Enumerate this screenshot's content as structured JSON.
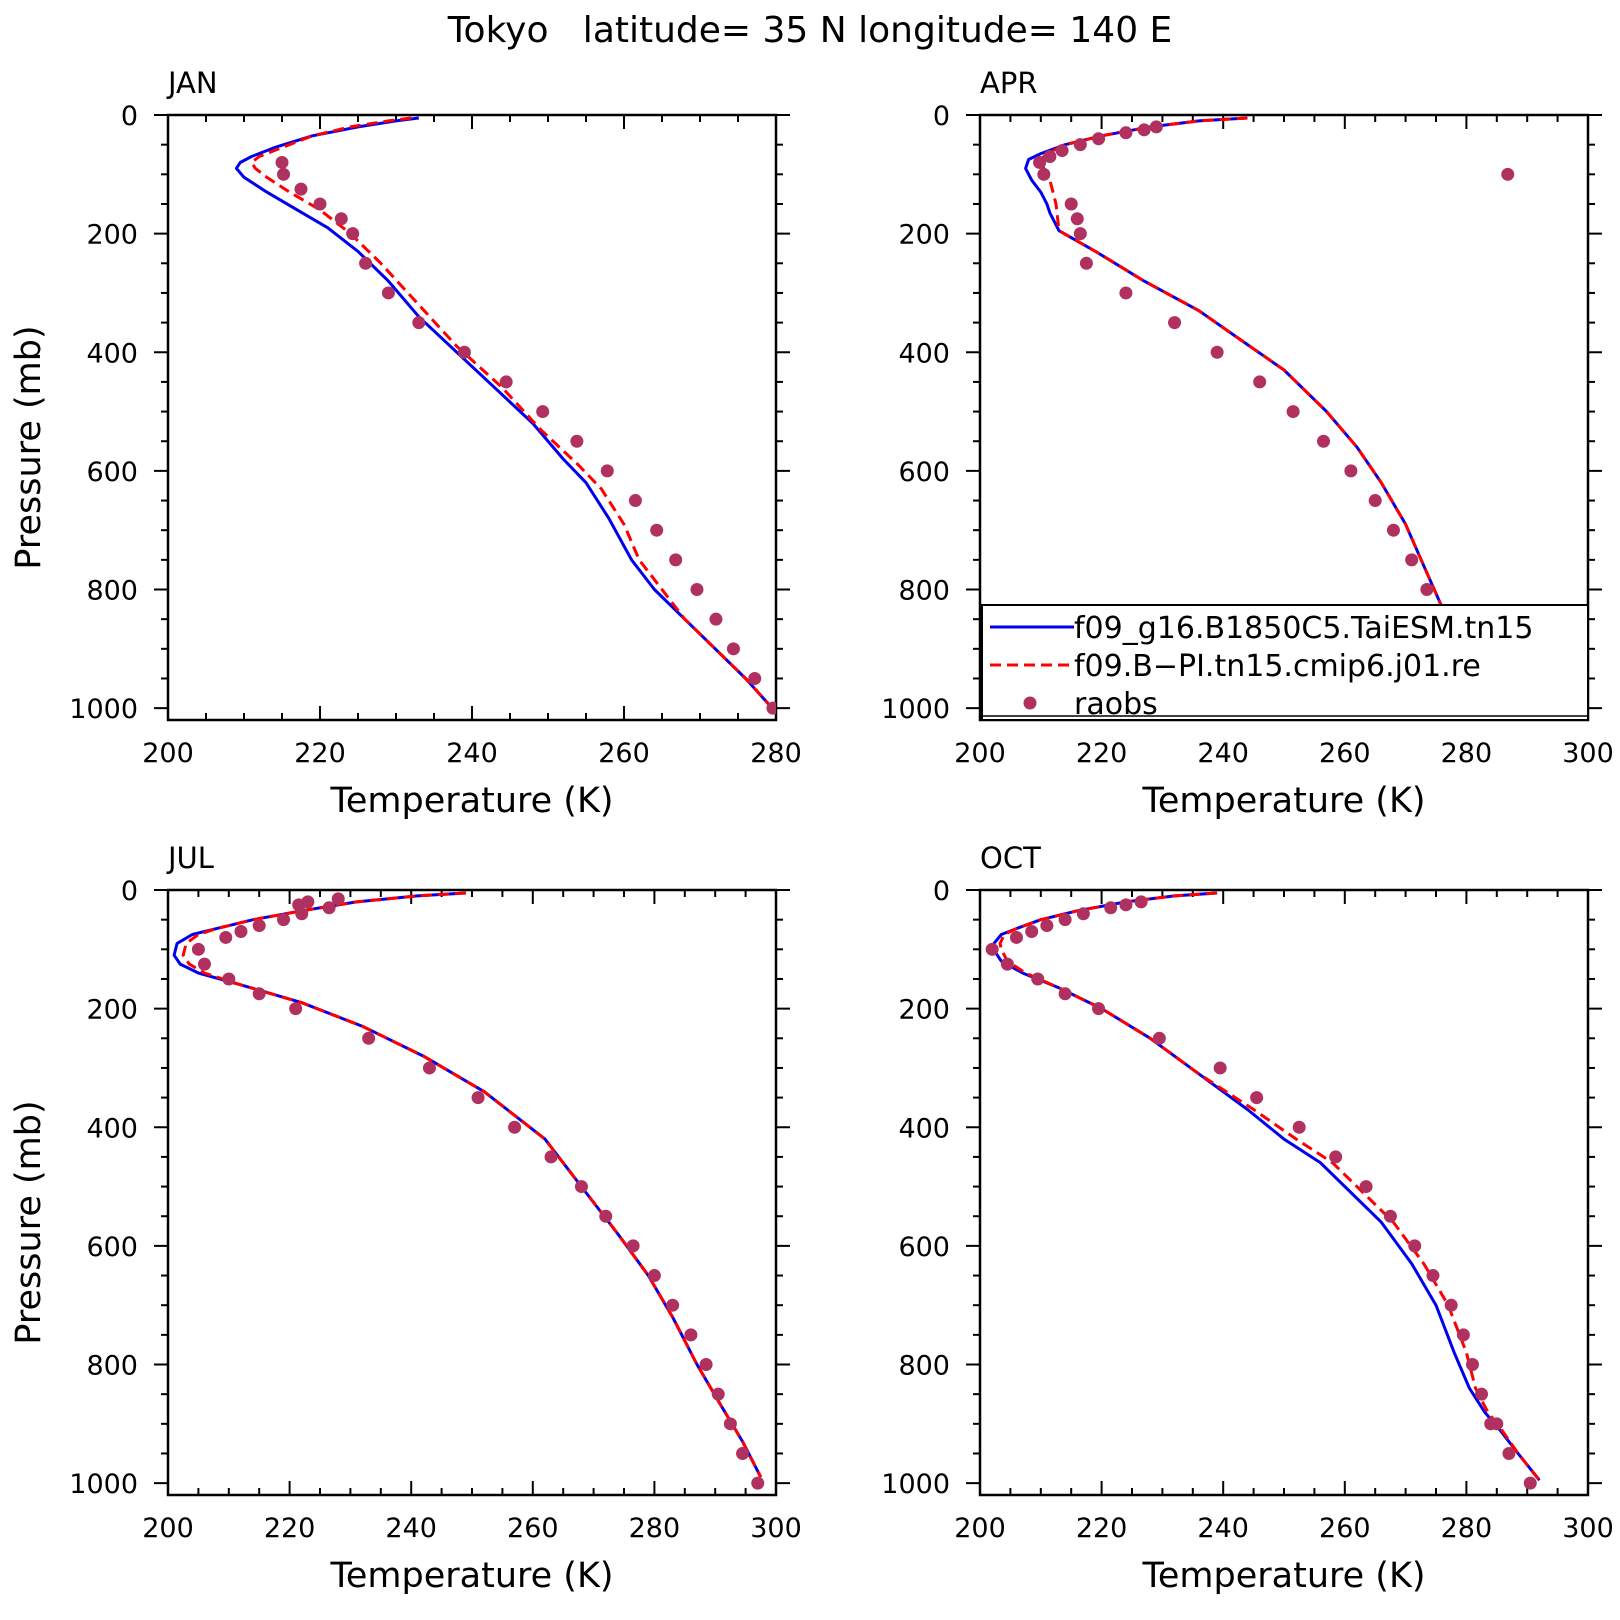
{
  "title": "Tokyo   latitude= 35 N longitude= 140 E",
  "colors": {
    "model1": "#0000ee",
    "model2": "#ff0000",
    "obs": "#b03060"
  },
  "legend": {
    "panel": 1,
    "entries": [
      {
        "label": "f09_g16.B1850C5.TaiESM.tn15",
        "series": "model1",
        "style": "solid"
      },
      {
        "label": "f09.B−PI.tn15.cmip6.j01.re",
        "series": "model2",
        "style": "dashed"
      },
      {
        "label": "raobs",
        "series": "obs",
        "style": "dots"
      }
    ]
  },
  "chart_data": [
    {
      "type": "line",
      "title": "JAN",
      "xlabel": "Temperature (K)",
      "ylabel": "Pressure (mb)",
      "xlim": [
        200,
        280
      ],
      "ylim": [
        1020,
        0
      ],
      "xticks": [
        200,
        220,
        240,
        260,
        280
      ],
      "yticks": [
        0,
        200,
        400,
        600,
        800,
        1000
      ],
      "series": [
        {
          "key": "model1",
          "style": "solid",
          "x": [
            233,
            230,
            225,
            219,
            214,
            211,
            209.5,
            209,
            210,
            213,
            217,
            221,
            225,
            229,
            233,
            238,
            243,
            248,
            252,
            255,
            258,
            261,
            264,
            268,
            272,
            276,
            279.5
          ],
          "y": [
            5,
            10,
            20,
            35,
            55,
            70,
            80,
            90,
            105,
            130,
            160,
            190,
            230,
            280,
            340,
            400,
            460,
            520,
            580,
            620,
            680,
            750,
            800,
            850,
            900,
            950,
            1000
          ]
        },
        {
          "key": "model2",
          "style": "dashed",
          "x": [
            232,
            229,
            224,
            219,
            215,
            212,
            211,
            211.5,
            213,
            216,
            220,
            224,
            228,
            233,
            238,
            244,
            249,
            254,
            257,
            260,
            262,
            265,
            268,
            272,
            276,
            279.5
          ],
          "y": [
            5,
            10,
            20,
            35,
            55,
            70,
            80,
            90,
            105,
            130,
            160,
            200,
            250,
            320,
            390,
            460,
            530,
            590,
            630,
            690,
            750,
            800,
            850,
            900,
            950,
            1000
          ]
        },
        {
          "key": "obs",
          "style": "dots",
          "x": [
            215,
            215.2,
            217.5,
            220,
            222.8,
            224.3,
            226,
            229,
            233,
            239,
            244.5,
            249.3,
            253.8,
            257.8,
            261.5,
            264.3,
            266.8,
            269.6,
            272.1,
            274.4,
            277.2,
            279.6
          ],
          "y": [
            80,
            100,
            125,
            150,
            175,
            200,
            250,
            300,
            350,
            400,
            450,
            500,
            550,
            600,
            650,
            700,
            750,
            800,
            850,
            900,
            950,
            1000
          ]
        }
      ]
    },
    {
      "type": "line",
      "title": "APR",
      "xlabel": "Temperature (K)",
      "ylabel": "",
      "xlim": [
        200,
        300
      ],
      "ylim": [
        1020,
        0
      ],
      "xticks": [
        200,
        220,
        240,
        260,
        280,
        300
      ],
      "yticks": [
        0,
        200,
        400,
        600,
        800,
        1000
      ],
      "series": [
        {
          "key": "model1",
          "style": "solid",
          "x": [
            244,
            236,
            228,
            220,
            214,
            210,
            208,
            207.5,
            208.5,
            210,
            211,
            211.5,
            213,
            219,
            227,
            236,
            243,
            250,
            257,
            262,
            266,
            270,
            273,
            276,
            280,
            283.5,
            286.5
          ],
          "y": [
            5,
            10,
            20,
            35,
            50,
            65,
            75,
            90,
            110,
            130,
            150,
            165,
            195,
            230,
            280,
            330,
            380,
            430,
            500,
            560,
            620,
            690,
            760,
            830,
            900,
            950,
            1000
          ]
        },
        {
          "key": "model2",
          "style": "dashed",
          "x": [
            244,
            236,
            228,
            220,
            214,
            211,
            210,
            210.5,
            211.5,
            212,
            212.5,
            213,
            219,
            227,
            236,
            243,
            250,
            257,
            262,
            266,
            270,
            273,
            276,
            280,
            283.5,
            286.5
          ],
          "y": [
            5,
            10,
            20,
            35,
            50,
            65,
            75,
            90,
            110,
            130,
            150,
            195,
            230,
            280,
            330,
            380,
            430,
            500,
            560,
            620,
            690,
            760,
            830,
            900,
            950,
            1000
          ]
        },
        {
          "key": "obs",
          "style": "dots",
          "x": [
            229,
            227,
            224,
            219.5,
            216.5,
            213.5,
            211.5,
            210.5,
            209.8,
            215,
            216,
            216.5,
            217.5,
            224,
            232,
            239,
            246,
            251.5,
            256.5,
            261,
            265,
            268,
            271,
            273.5,
            276,
            278,
            281,
            284,
            286.8
          ],
          "y": [
            20,
            25,
            30,
            40,
            50,
            60,
            70,
            100,
            80,
            150,
            175,
            200,
            250,
            300,
            350,
            400,
            450,
            500,
            550,
            600,
            650,
            700,
            750,
            800,
            850,
            900,
            950,
            1000,
            100
          ]
        }
      ]
    },
    {
      "type": "line",
      "title": "JUL",
      "xlabel": "Temperature (K)",
      "ylabel": "Pressure (mb)",
      "xlim": [
        200,
        300
      ],
      "ylim": [
        1020,
        0
      ],
      "xticks": [
        200,
        220,
        240,
        260,
        280,
        300
      ],
      "yticks": [
        0,
        200,
        400,
        600,
        800,
        1000
      ],
      "series": [
        {
          "key": "model1",
          "style": "solid",
          "x": [
            249,
            241,
            231,
            222,
            214,
            208,
            204,
            201.5,
            201,
            202,
            205,
            212,
            222,
            232,
            242,
            252,
            262,
            268,
            274,
            279,
            283,
            287,
            291,
            294.5,
            297.5
          ],
          "y": [
            5,
            10,
            20,
            35,
            50,
            65,
            75,
            90,
            110,
            125,
            140,
            160,
            190,
            230,
            280,
            340,
            420,
            500,
            580,
            650,
            720,
            800,
            870,
            930,
            990
          ]
        },
        {
          "key": "model2",
          "style": "dashed",
          "x": [
            249,
            241,
            231,
            222,
            214,
            208,
            205,
            203,
            202.5,
            203.5,
            206,
            212,
            222,
            232,
            242,
            252,
            262,
            268,
            274,
            279,
            283,
            287,
            291,
            294.5,
            297.5
          ],
          "y": [
            5,
            10,
            20,
            35,
            50,
            65,
            75,
            90,
            110,
            125,
            140,
            160,
            190,
            230,
            280,
            340,
            420,
            500,
            580,
            650,
            720,
            800,
            870,
            930,
            990
          ]
        },
        {
          "key": "obs",
          "style": "dots",
          "x": [
            228,
            223,
            221.5,
            226.5,
            222,
            219,
            215,
            212,
            209.5,
            205,
            206,
            210,
            215,
            221,
            233,
            243,
            251,
            257,
            263,
            268,
            272,
            276.5,
            280,
            283,
            286,
            288.5,
            290.5,
            292.5,
            294.5,
            297
          ],
          "y": [
            15,
            20,
            25,
            30,
            40,
            50,
            60,
            70,
            80,
            100,
            125,
            150,
            175,
            200,
            250,
            300,
            350,
            400,
            450,
            500,
            550,
            600,
            650,
            700,
            750,
            800,
            850,
            900,
            950,
            1000
          ]
        }
      ]
    },
    {
      "type": "line",
      "title": "OCT",
      "xlabel": "Temperature (K)",
      "ylabel": "",
      "xlim": [
        200,
        300
      ],
      "ylim": [
        1020,
        0
      ],
      "xticks": [
        200,
        220,
        240,
        260,
        280,
        300
      ],
      "yticks": [
        0,
        200,
        400,
        600,
        800,
        1000
      ],
      "series": [
        {
          "key": "model1",
          "style": "solid",
          "x": [
            239,
            232,
            224,
            216,
            210,
            206,
            203.5,
            202.3,
            202.2,
            203.5,
            207,
            213,
            220,
            228,
            236,
            244,
            250,
            256,
            261,
            266,
            271,
            275,
            278,
            280.5,
            283,
            285.5,
            288.5,
            292
          ],
          "y": [
            5,
            10,
            20,
            35,
            50,
            65,
            75,
            90,
            100,
            120,
            140,
            165,
            200,
            250,
            310,
            370,
            420,
            460,
            510,
            560,
            630,
            700,
            780,
            840,
            880,
            910,
            950,
            995
          ]
        },
        {
          "key": "model2",
          "style": "dashed",
          "x": [
            239,
            232,
            224,
            216,
            210,
            206,
            204,
            203.3,
            203.5,
            204.5,
            207.5,
            213,
            220,
            228,
            236,
            245,
            252,
            258,
            263,
            268,
            273,
            277,
            280,
            281.5,
            283.5,
            285.8,
            288.5,
            292
          ],
          "y": [
            5,
            10,
            20,
            35,
            50,
            65,
            75,
            90,
            100,
            120,
            140,
            165,
            200,
            250,
            310,
            370,
            420,
            460,
            510,
            560,
            630,
            700,
            780,
            840,
            880,
            910,
            950,
            995
          ]
        },
        {
          "key": "obs",
          "style": "dots",
          "x": [
            226.5,
            224,
            221.5,
            217,
            214,
            211,
            208.5,
            206,
            202,
            204.5,
            209.5,
            214,
            219.5,
            229.5,
            239.5,
            245.5,
            252.5,
            258.5,
            263.5,
            267.5,
            271.5,
            274.5,
            277.5,
            279.5,
            281,
            282.5,
            284,
            285,
            287,
            290.5
          ],
          "y": [
            20,
            25,
            30,
            40,
            50,
            60,
            70,
            80,
            100,
            125,
            150,
            175,
            200,
            250,
            300,
            350,
            400,
            450,
            500,
            550,
            600,
            650,
            700,
            750,
            800,
            850,
            900,
            900,
            950,
            1000
          ]
        }
      ]
    }
  ]
}
